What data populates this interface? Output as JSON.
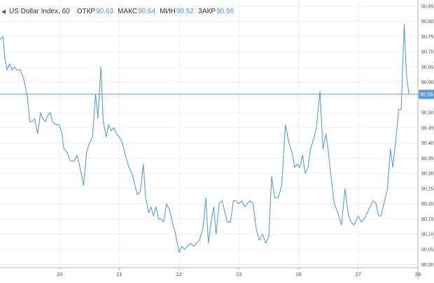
{
  "legend": {
    "title": "US Dollar Index, 60",
    "open_label": "ОТКР",
    "open_value": "90.63",
    "high_label": "МАКС",
    "high_value": "90.64",
    "low_label": "МИН",
    "low_value": "90.52",
    "close_label": "ЗАКР",
    "close_value": "90.56"
  },
  "colors": {
    "line": "#5b9bd5",
    "price_tag": "#5b9bd5",
    "grid": "#eef0f3",
    "axis": "#888888"
  },
  "chart_data": {
    "type": "line",
    "title": "US Dollar Index, 60",
    "xlabel": "",
    "ylabel": "",
    "x_tick_labels": [
      "20",
      "21",
      "22",
      "23",
      "26",
      "27",
      "28"
    ],
    "y_ticks": [
      "90.85",
      "90.80",
      "90.75",
      "90.70",
      "90.65",
      "90.60",
      "90.55",
      "90.50",
      "90.45",
      "90.40",
      "90.35",
      "90.30",
      "90.25",
      "90.20",
      "90.15",
      "90.10",
      "90.05",
      "90.00"
    ],
    "ylim": [
      89.99,
      90.87
    ],
    "xlim": [
      0,
      7.0
    ],
    "grid": true,
    "last_price": 90.56,
    "last_price_label": "90.56",
    "series": [
      {
        "values": [
          [
            0.0,
            90.74
          ],
          [
            0.05,
            90.75
          ],
          [
            0.08,
            90.68
          ],
          [
            0.12,
            90.64
          ],
          [
            0.16,
            90.66
          ],
          [
            0.2,
            90.64
          ],
          [
            0.24,
            90.65
          ],
          [
            0.28,
            90.64
          ],
          [
            0.34,
            90.64
          ],
          [
            0.4,
            90.61
          ],
          [
            0.46,
            90.55
          ],
          [
            0.5,
            90.47
          ],
          [
            0.54,
            90.47
          ],
          [
            0.58,
            90.48
          ],
          [
            0.63,
            90.43
          ],
          [
            0.68,
            90.5
          ],
          [
            0.72,
            90.48
          ],
          [
            0.76,
            90.47
          ],
          [
            0.8,
            90.49
          ],
          [
            0.84,
            90.5
          ],
          [
            0.88,
            90.47
          ],
          [
            0.93,
            90.46
          ],
          [
            0.98,
            90.46
          ],
          [
            1.03,
            90.44
          ],
          [
            1.07,
            90.38
          ],
          [
            1.12,
            90.37
          ],
          [
            1.18,
            90.34
          ],
          [
            1.24,
            90.34
          ],
          [
            1.29,
            90.36
          ],
          [
            1.35,
            90.31
          ],
          [
            1.4,
            90.26
          ],
          [
            1.45,
            90.37
          ],
          [
            1.5,
            90.4
          ],
          [
            1.55,
            90.42
          ],
          [
            1.6,
            90.56
          ],
          [
            1.64,
            90.48
          ],
          [
            1.69,
            90.65
          ],
          [
            1.73,
            90.47
          ],
          [
            1.78,
            90.42
          ],
          [
            1.82,
            90.46
          ],
          [
            1.86,
            90.44
          ],
          [
            1.91,
            90.45
          ],
          [
            1.95,
            90.43
          ],
          [
            2.0,
            90.42
          ],
          [
            2.05,
            90.4
          ],
          [
            2.1,
            90.36
          ],
          [
            2.16,
            90.32
          ],
          [
            2.21,
            90.3
          ],
          [
            2.25,
            90.27
          ],
          [
            2.3,
            90.23
          ],
          [
            2.35,
            90.24
          ],
          [
            2.4,
            90.33
          ],
          [
            2.44,
            90.22
          ],
          [
            2.49,
            90.17
          ],
          [
            2.53,
            90.19
          ],
          [
            2.57,
            90.16
          ],
          [
            2.61,
            90.19
          ],
          [
            2.66,
            90.15
          ],
          [
            2.7,
            90.15
          ],
          [
            2.74,
            90.14
          ],
          [
            2.79,
            90.2
          ],
          [
            2.84,
            90.18
          ],
          [
            2.9,
            90.13
          ],
          [
            2.94,
            90.1
          ],
          [
            3.0,
            90.04
          ],
          [
            3.05,
            90.06
          ],
          [
            3.09,
            90.05
          ],
          [
            3.14,
            90.06
          ],
          [
            3.19,
            90.07
          ],
          [
            3.24,
            90.06
          ],
          [
            3.29,
            90.07
          ],
          [
            3.34,
            90.08
          ],
          [
            3.4,
            90.12
          ],
          [
            3.45,
            90.22
          ],
          [
            3.49,
            90.07
          ],
          [
            3.53,
            90.13
          ],
          [
            3.58,
            90.19
          ],
          [
            3.62,
            90.1
          ],
          [
            3.67,
            90.2
          ],
          [
            3.72,
            90.21
          ],
          [
            3.77,
            90.17
          ],
          [
            3.81,
            90.14
          ],
          [
            3.86,
            90.14
          ],
          [
            3.91,
            90.21
          ],
          [
            3.95,
            90.21
          ],
          [
            4.0,
            90.2
          ],
          [
            4.05,
            90.21
          ],
          [
            4.1,
            90.19
          ],
          [
            4.14,
            90.2
          ],
          [
            4.19,
            90.21
          ],
          [
            4.24,
            90.2
          ],
          [
            4.29,
            90.12
          ],
          [
            4.34,
            90.08
          ],
          [
            4.4,
            90.1
          ],
          [
            4.45,
            90.07
          ],
          [
            4.5,
            90.09
          ],
          [
            4.55,
            90.29
          ],
          [
            4.6,
            90.22
          ],
          [
            4.66,
            90.22
          ],
          [
            4.72,
            90.26
          ],
          [
            4.78,
            90.46
          ],
          [
            4.84,
            90.4
          ],
          [
            4.89,
            90.37
          ],
          [
            4.94,
            90.32
          ],
          [
            4.98,
            90.33
          ],
          [
            5.02,
            90.32
          ],
          [
            5.07,
            90.36
          ],
          [
            5.11,
            90.3
          ],
          [
            5.16,
            90.32
          ],
          [
            5.2,
            90.38
          ],
          [
            5.25,
            90.41
          ],
          [
            5.3,
            90.45
          ],
          [
            5.36,
            90.57
          ],
          [
            5.41,
            90.38
          ],
          [
            5.46,
            90.43
          ],
          [
            5.5,
            90.37
          ],
          [
            5.55,
            90.28
          ],
          [
            5.6,
            90.2
          ],
          [
            5.66,
            90.17
          ],
          [
            5.72,
            90.13
          ],
          [
            5.78,
            90.25
          ],
          [
            5.83,
            90.17
          ],
          [
            5.88,
            90.14
          ],
          [
            5.93,
            90.13
          ],
          [
            6.0,
            90.16
          ],
          [
            6.05,
            90.14
          ],
          [
            6.1,
            90.15
          ],
          [
            6.15,
            90.17
          ],
          [
            6.2,
            90.19
          ],
          [
            6.25,
            90.21
          ],
          [
            6.3,
            90.2
          ],
          [
            6.34,
            90.16
          ],
          [
            6.38,
            90.16
          ],
          [
            6.43,
            90.2
          ],
          [
            6.49,
            90.25
          ],
          [
            6.54,
            90.38
          ],
          [
            6.58,
            90.32
          ],
          [
            6.63,
            90.41
          ],
          [
            6.68,
            90.51
          ],
          [
            6.72,
            90.51
          ],
          [
            6.77,
            90.79
          ],
          [
            6.81,
            90.62
          ],
          [
            6.85,
            90.56
          ]
        ]
      }
    ]
  }
}
